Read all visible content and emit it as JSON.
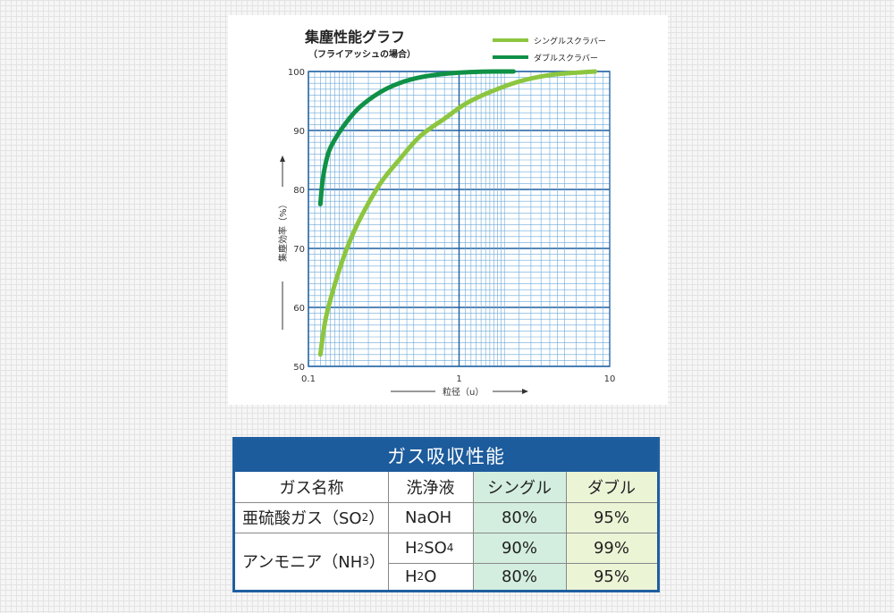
{
  "chart_data": {
    "type": "line",
    "title": "集塵性能グラフ",
    "subtitle": "（フライアッシュの場合）",
    "xlabel": "粒径（u）",
    "ylabel": "集塵効率（%）",
    "xscale": "log",
    "xlim": [
      0.1,
      10
    ],
    "ylim": [
      50,
      100
    ],
    "x_ticks": [
      "0.1",
      "1",
      "10"
    ],
    "y_ticks": [
      "50",
      "60",
      "70",
      "80",
      "90",
      "100"
    ],
    "grid": true,
    "legend_position": "top-right",
    "series": [
      {
        "name": "シングルスクラバー",
        "color": "#8cc63f",
        "x": [
          0.12,
          0.13,
          0.15,
          0.18,
          0.22,
          0.3,
          0.4,
          0.55,
          0.8,
          1.1,
          1.6,
          2.5,
          4,
          6,
          8
        ],
        "y": [
          52,
          58,
          64,
          70,
          75,
          81,
          85,
          89,
          92,
          94.5,
          96.5,
          98.3,
          99.4,
          99.8,
          100
        ]
      },
      {
        "name": "ダブルスクラバー",
        "color": "#0f9146",
        "x": [
          0.12,
          0.125,
          0.135,
          0.15,
          0.18,
          0.22,
          0.3,
          0.4,
          0.55,
          0.8,
          1.2,
          1.7,
          2.3
        ],
        "y": [
          77.5,
          82,
          86,
          88.5,
          91.5,
          94,
          96.5,
          98,
          99,
          99.6,
          99.9,
          100,
          100
        ]
      }
    ]
  },
  "table": {
    "title": "ガス吸収性能",
    "headers": [
      "ガス名称",
      "洗浄液",
      "シングル",
      "ダブル"
    ],
    "rows": [
      {
        "gas_main": "亜硫酸ガス（SO",
        "gas_sub": "2",
        "gas_end": "）",
        "liquid": "NaOH",
        "single": "80%",
        "double": "95%"
      },
      {
        "gas_main": "アンモニア（NH",
        "gas_sub": "3",
        "gas_end": "）",
        "liquid_a": "H",
        "liquid_b": "2",
        "liquid_c": "SO",
        "liquid_d": "4",
        "single": "90%",
        "double": "99%"
      },
      {
        "liquid_a": "H",
        "liquid_b": "2",
        "liquid_c": "O",
        "single": "80%",
        "double": "95%"
      }
    ]
  }
}
